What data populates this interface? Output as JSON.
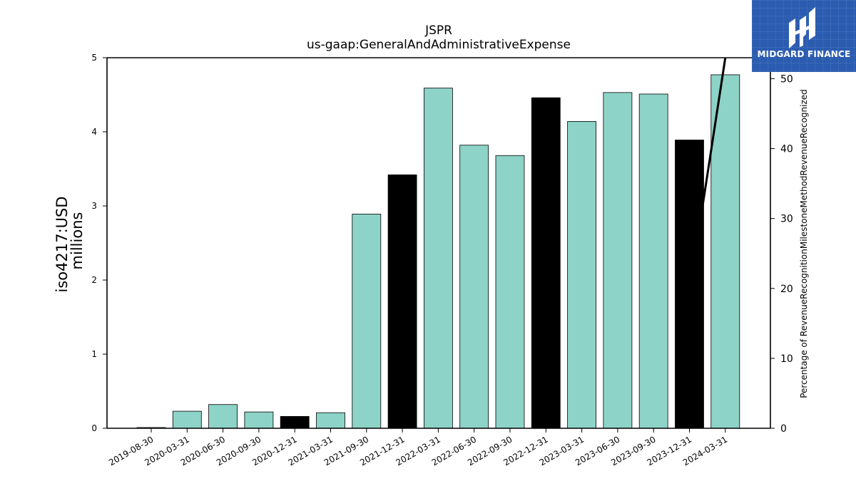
{
  "chart_data": {
    "type": "bar",
    "title": "JSPR",
    "subtitle": "us-gaap:GeneralAndAdministrativeExpense",
    "ylabel": "iso4217:USD",
    "ylabel_unit": "millions",
    "y2label": "Percentage of RevenueRecognitionMilestoneMethodRevenueRecognized",
    "ylim": [
      0,
      5
    ],
    "y2lim": [
      0,
      53
    ],
    "yticks": [
      "0",
      "1",
      "2",
      "3",
      "4",
      "5"
    ],
    "y2ticks": [
      "0",
      "10",
      "20",
      "30",
      "40",
      "50"
    ],
    "categories": [
      "2019-08-30",
      "2020-03-31",
      "2020-06-30",
      "2020-09-30",
      "2020-12-31",
      "2021-03-31",
      "2021-09-30",
      "2021-12-31",
      "2022-03-31",
      "2022-06-30",
      "2022-09-30",
      "2022-12-31",
      "2023-03-31",
      "2023-06-30",
      "2023-09-30",
      "2023-12-31",
      "2024-03-31"
    ],
    "series": [
      {
        "type": "bar",
        "values": [
          0.01,
          0.23,
          0.32,
          0.22,
          0.16,
          0.21,
          2.89,
          3.42,
          4.59,
          3.82,
          3.68,
          4.46,
          4.14,
          4.53,
          4.51,
          3.89,
          4.77
        ],
        "colors": [
          "#8dd3c7",
          "#8dd3c7",
          "#8dd3c7",
          "#8dd3c7",
          "#000000",
          "#8dd3c7",
          "#8dd3c7",
          "#000000",
          "#8dd3c7",
          "#8dd3c7",
          "#8dd3c7",
          "#000000",
          "#8dd3c7",
          "#8dd3c7",
          "#8dd3c7",
          "#000000",
          "#8dd3c7"
        ]
      },
      {
        "type": "line",
        "axis": "right",
        "points": [
          [
            "2023-12-31",
            19.5
          ],
          [
            "2024-03-31",
            53.0
          ]
        ],
        "color": "#000000"
      }
    ],
    "grid": false,
    "legend": "none"
  },
  "logo": {
    "text": "MIDGARD FINANCE",
    "background": "#2b5cb0"
  }
}
